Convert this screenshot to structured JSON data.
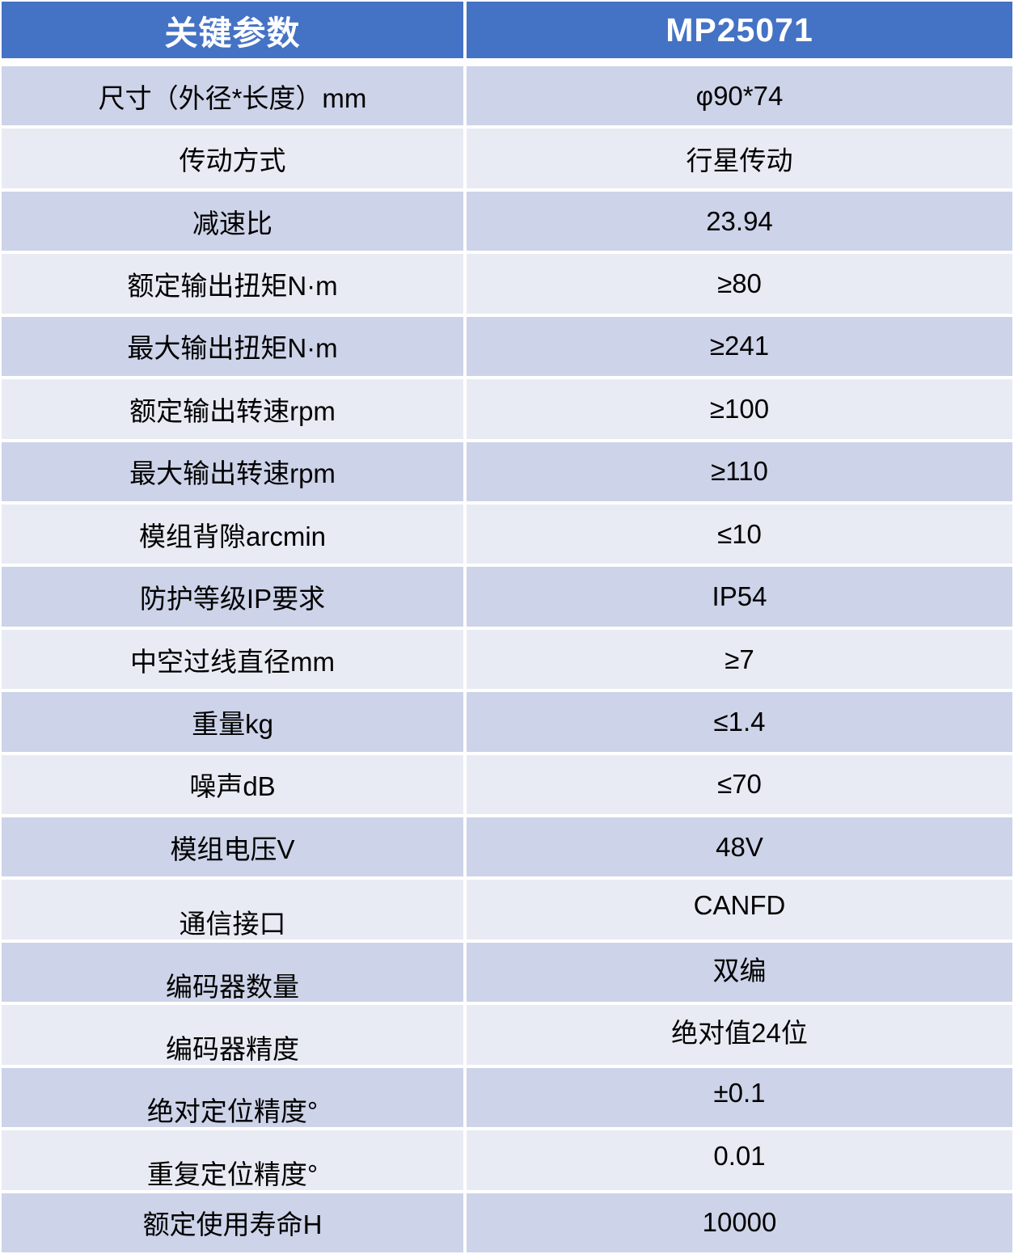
{
  "colors": {
    "header_bg": "#4472C4",
    "header_text": "#FFFFFF",
    "row_odd_bg": "#CDD3E8",
    "row_even_bg": "#E9EBF4",
    "body_text": "#000000",
    "gap_color": "#FFFFFF"
  },
  "table": {
    "header": {
      "param_col": "关键参数",
      "model_col": "MP25071"
    },
    "rows": [
      {
        "label": "尺寸（外径*长度）mm",
        "value": "φ90*74"
      },
      {
        "label": "传动方式",
        "value": "行星传动"
      },
      {
        "label": "减速比",
        "value": "23.94"
      },
      {
        "label": "额定输出扭矩N·m",
        "value": "≥80"
      },
      {
        "label": "最大输出扭矩N·m",
        "value": "≥241"
      },
      {
        "label": "额定输出转速rpm",
        "value": "≥100"
      },
      {
        "label": "最大输出转速rpm",
        "value": "≥110"
      },
      {
        "label": "模组背隙arcmin",
        "value": "≤10"
      },
      {
        "label": "防护等级IP要求",
        "value": "IP54"
      },
      {
        "label": "中空过线直径mm",
        "value": "≥7"
      },
      {
        "label": "重量kg",
        "value": "≤1.4"
      },
      {
        "label": "噪声dB",
        "value": "≤70"
      },
      {
        "label": "模组电压V",
        "value": "48V"
      },
      {
        "label": "通信接口",
        "value": "CANFD"
      },
      {
        "label": "编码器数量",
        "value": "双编"
      },
      {
        "label": "编码器精度",
        "value": "绝对值24位"
      },
      {
        "label": "绝对定位精度°",
        "value": "±0.1"
      },
      {
        "label": "重复定位精度°",
        "value": "0.01"
      },
      {
        "label": "额定使用寿命H",
        "value": "10000"
      }
    ]
  }
}
